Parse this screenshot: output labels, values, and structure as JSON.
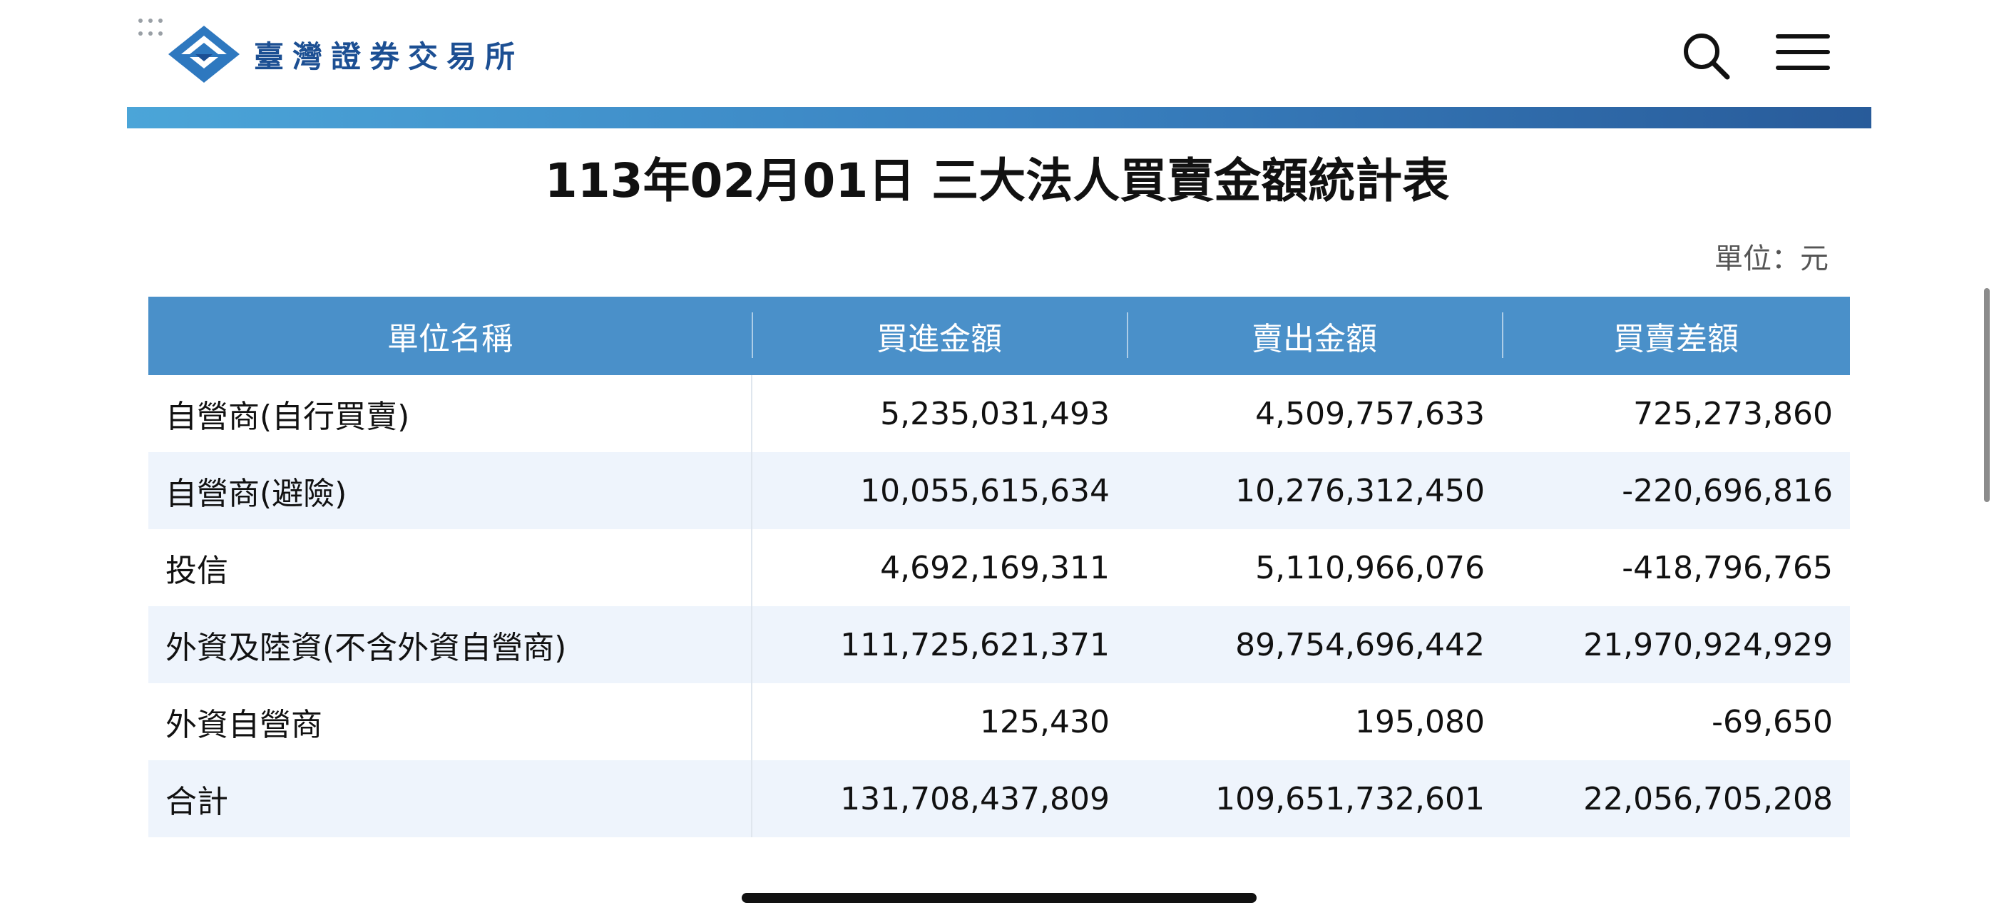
{
  "header": {
    "logo_text": "臺灣證券交易所",
    "search_icon": "search-icon",
    "menu_icon": "hamburger-menu-icon"
  },
  "page": {
    "title": "113年02月01日 三大法人買賣金額統計表",
    "unit": "單位：元"
  },
  "table": {
    "columns": [
      "單位名稱",
      "買進金額",
      "賣出金額",
      "買賣差額"
    ],
    "rows": [
      [
        "自營商(自行買賣)",
        "5,235,031,493",
        "4,509,757,633",
        "725,273,860"
      ],
      [
        "自營商(避險)",
        "10,055,615,634",
        "10,276,312,450",
        "-220,696,816"
      ],
      [
        "投信",
        "4,692,169,311",
        "5,110,966,076",
        "-418,796,765"
      ],
      [
        "外資及陸資(不含外資自營商)",
        "111,725,621,371",
        "89,754,696,442",
        "21,970,924,929"
      ],
      [
        "外資自營商",
        "125,430",
        "195,080",
        "-69,650"
      ],
      [
        "合計",
        "131,708,437,809",
        "109,651,732,601",
        "22,056,705,208"
      ]
    ]
  },
  "colors": {
    "header_bg": "#4a90c9",
    "alt_row_bg": "#eef4fc",
    "brand": "#1c4f93"
  }
}
